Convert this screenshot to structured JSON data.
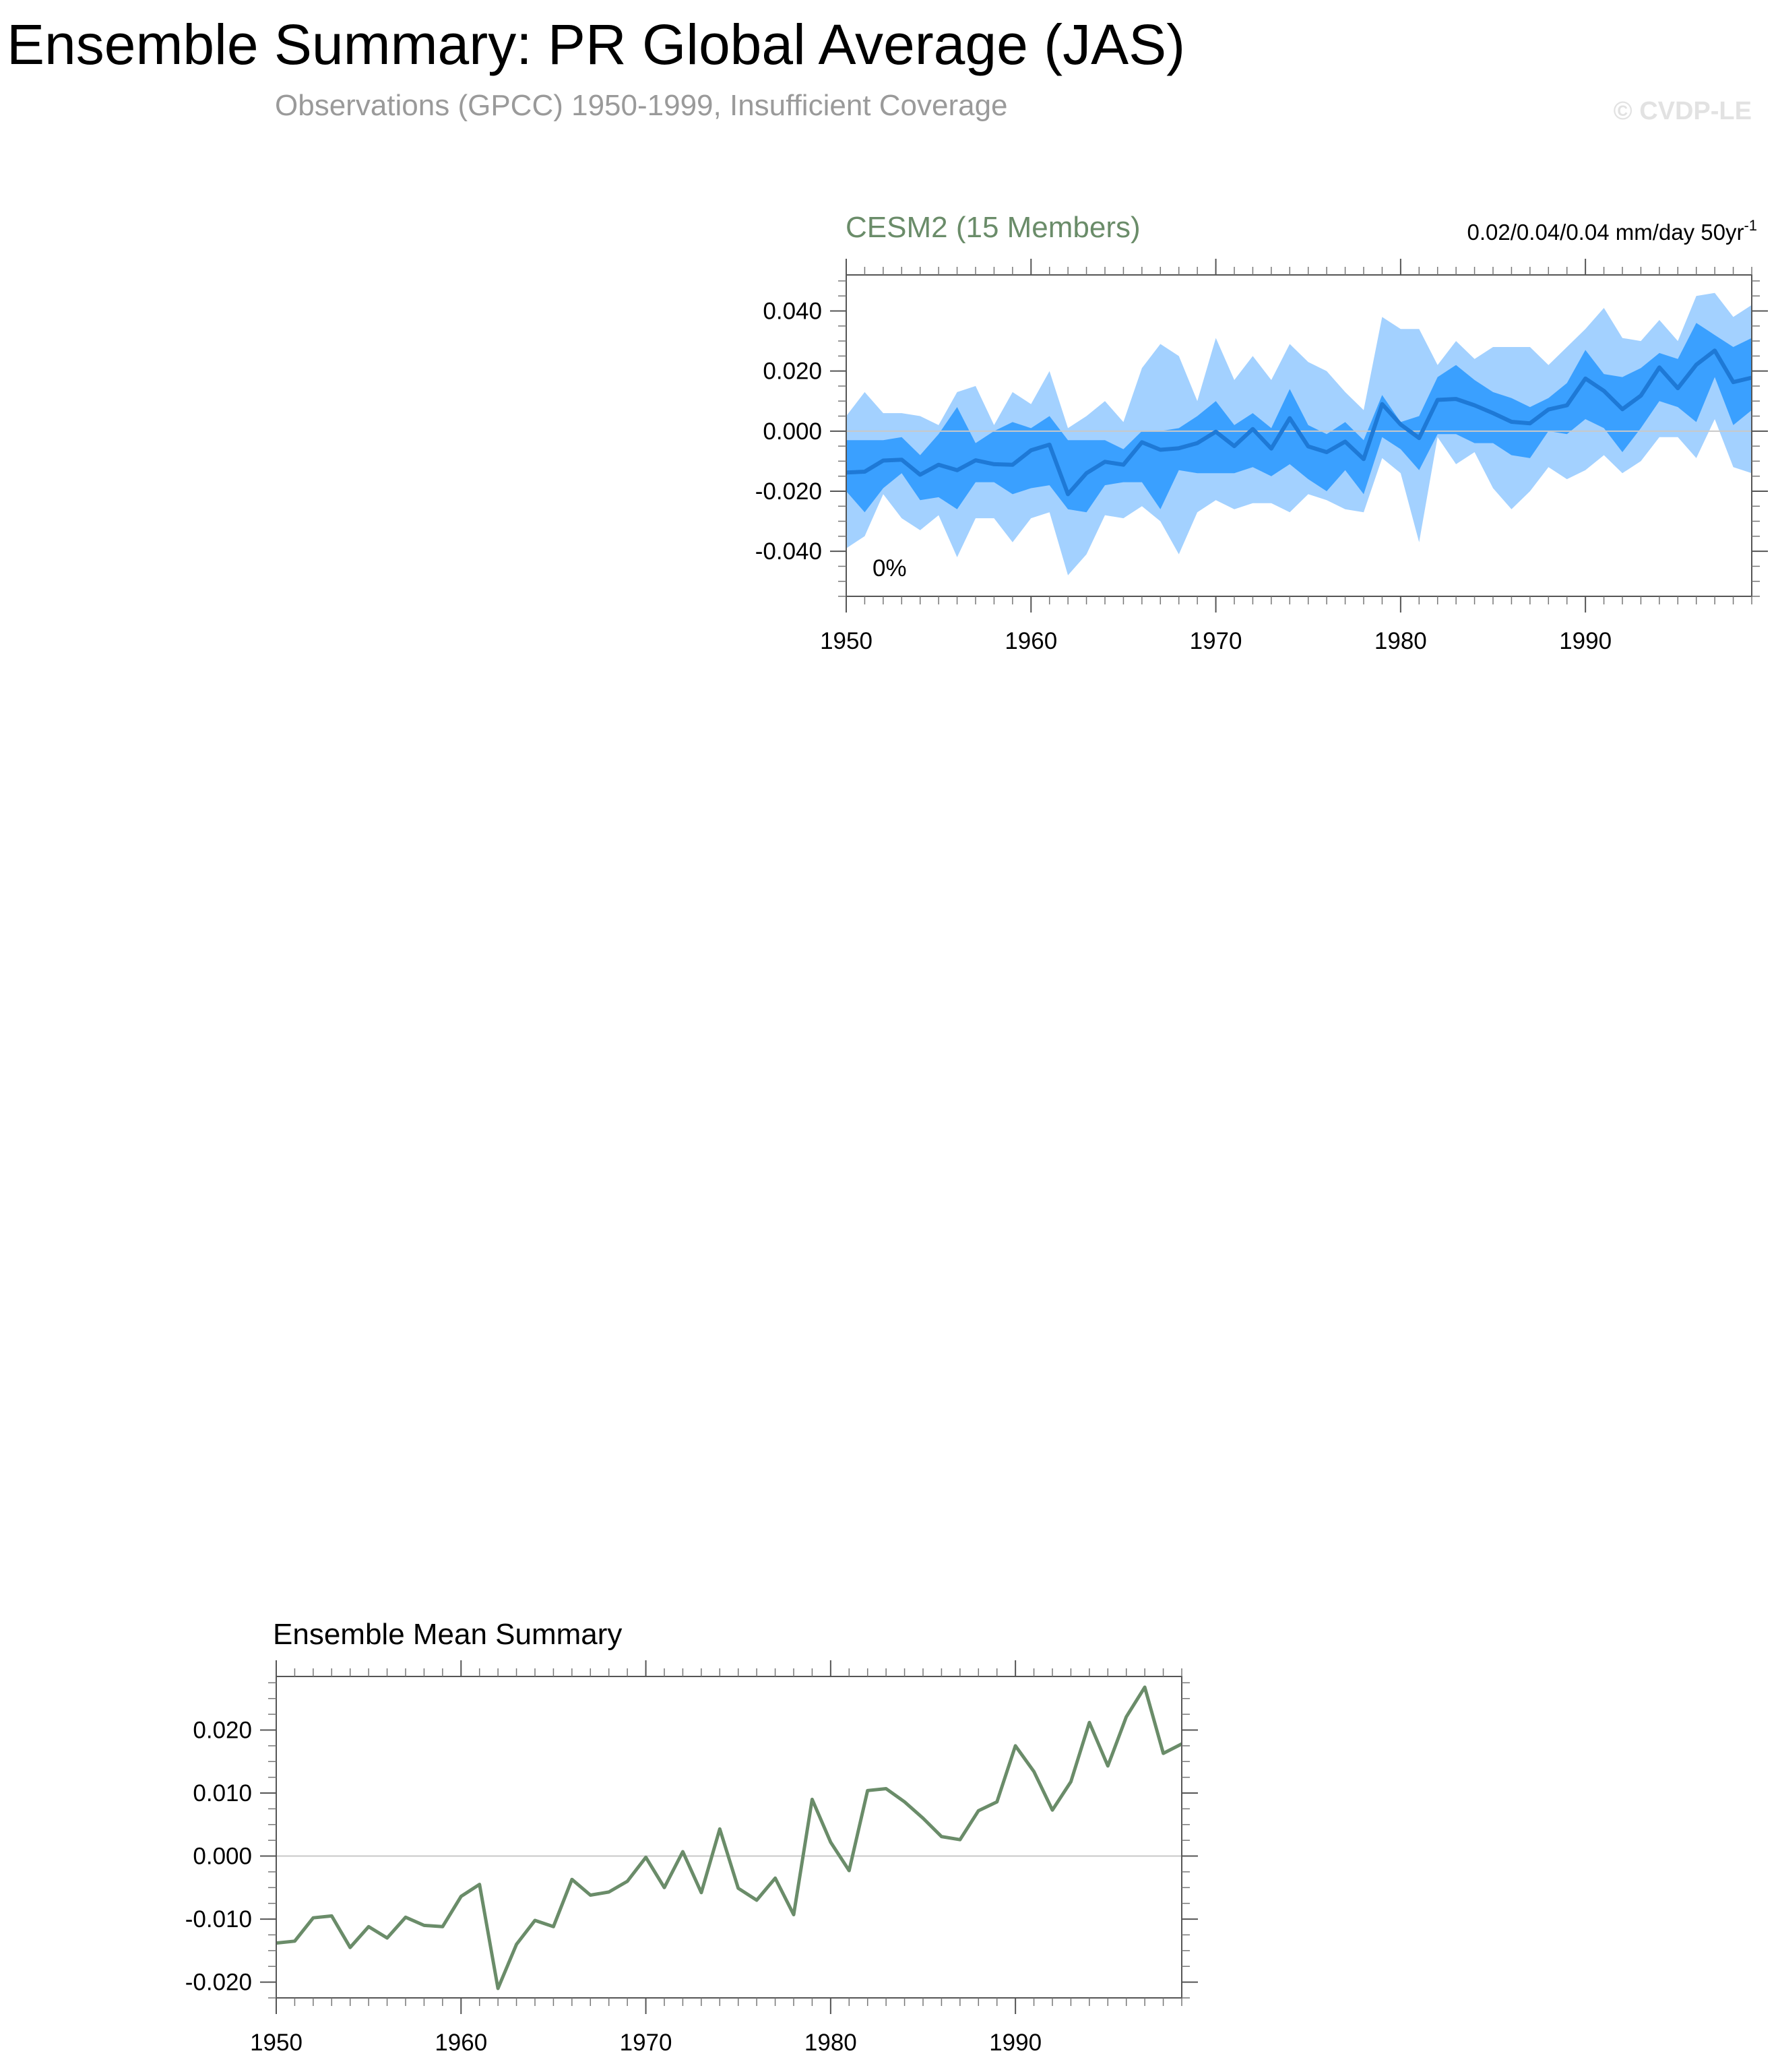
{
  "header": {
    "title": "Ensemble Summary: PR Global Average (JAS)",
    "subtitle": "Observations (GPCC) 1950-1999, Insufficient Coverage",
    "watermark": "© CVDP-LE"
  },
  "colors": {
    "outer_band": "#a3d1ff",
    "inner_band": "#3aa0ff",
    "ensemble_mean": "#1e79d6",
    "summary_line": "#6a8c69",
    "panel_title": "#6a8c69"
  },
  "chart_data": [
    {
      "type": "area",
      "title": "CESM2 (15 Members)",
      "trend_label": "0.02/0.04/0.04 mm/day 50yr",
      "trend_label_sup": "-1",
      "annotation": "0%",
      "xlim": [
        1950,
        1999
      ],
      "ylim": [
        -0.055,
        0.052
      ],
      "yticks": [
        0.04,
        0.02,
        0.0,
        -0.02,
        -0.04
      ],
      "ytick_labels": [
        "0.040",
        "0.020",
        "0.000",
        "-0.020",
        "-0.040"
      ],
      "xticks": [
        1950,
        1960,
        1970,
        1980,
        1990
      ],
      "xtick_labels": [
        "1950",
        "1960",
        "1970",
        "1980",
        "1990"
      ],
      "x": [
        1950,
        1951,
        1952,
        1953,
        1954,
        1955,
        1956,
        1957,
        1958,
        1959,
        1960,
        1961,
        1962,
        1963,
        1964,
        1965,
        1966,
        1967,
        1968,
        1969,
        1970,
        1971,
        1972,
        1973,
        1974,
        1975,
        1976,
        1977,
        1978,
        1979,
        1980,
        1981,
        1982,
        1983,
        1984,
        1985,
        1986,
        1987,
        1988,
        1989,
        1990,
        1991,
        1992,
        1993,
        1994,
        1995,
        1996,
        1997,
        1998,
        1999
      ],
      "series": [
        {
          "role": "max",
          "values": [
            0.005,
            0.013,
            0.006,
            0.006,
            0.005,
            0.002,
            0.013,
            0.015,
            0.002,
            0.013,
            0.009,
            0.02,
            0.001,
            0.005,
            0.01,
            0.003,
            0.021,
            0.029,
            0.025,
            0.01,
            0.031,
            0.017,
            0.025,
            0.017,
            0.029,
            0.023,
            0.02,
            0.013,
            0.007,
            0.038,
            0.034,
            0.034,
            0.022,
            0.03,
            0.024,
            0.028,
            0.028,
            0.028,
            0.022,
            0.028,
            0.034,
            0.041,
            0.031,
            0.03,
            0.037,
            0.03,
            0.045,
            0.046,
            0.038,
            0.042
          ]
        },
        {
          "role": "q75",
          "values": [
            -0.003,
            -0.003,
            -0.003,
            -0.002,
            -0.008,
            -0.001,
            0.008,
            -0.004,
            0.0,
            0.003,
            0.001,
            0.005,
            -0.003,
            -0.003,
            -0.003,
            -0.006,
            0.0,
            0.0,
            0.001,
            0.005,
            0.01,
            0.002,
            0.006,
            0.001,
            0.014,
            0.002,
            -0.001,
            0.003,
            -0.003,
            0.012,
            0.003,
            0.005,
            0.018,
            0.022,
            0.017,
            0.013,
            0.011,
            0.008,
            0.011,
            0.016,
            0.027,
            0.019,
            0.018,
            0.021,
            0.026,
            0.024,
            0.036,
            0.032,
            0.028,
            0.031
          ]
        },
        {
          "role": "mean",
          "values": [
            -0.0138,
            -0.0135,
            -0.0098,
            -0.0095,
            -0.0145,
            -0.0112,
            -0.013,
            -0.0097,
            -0.011,
            -0.0112,
            -0.0064,
            -0.0045,
            -0.021,
            -0.014,
            -0.0102,
            -0.0112,
            -0.0037,
            -0.0062,
            -0.0057,
            -0.004,
            -0.0002,
            -0.005,
            0.0007,
            -0.0058,
            0.0043,
            -0.0051,
            -0.007,
            -0.0035,
            -0.0093,
            0.009,
            0.0022,
            -0.0023,
            0.0104,
            0.0107,
            0.0086,
            0.006,
            0.0031,
            0.0026,
            0.0072,
            0.0086,
            0.0175,
            0.0134,
            0.0073,
            0.0118,
            0.0212,
            0.0143,
            0.0221,
            0.0268,
            0.0163,
            0.0178
          ]
        },
        {
          "role": "q25",
          "values": [
            -0.02,
            -0.027,
            -0.019,
            -0.014,
            -0.023,
            -0.022,
            -0.026,
            -0.017,
            -0.017,
            -0.021,
            -0.019,
            -0.018,
            -0.026,
            -0.027,
            -0.018,
            -0.017,
            -0.017,
            -0.026,
            -0.013,
            -0.014,
            -0.014,
            -0.014,
            -0.012,
            -0.015,
            -0.011,
            -0.016,
            -0.02,
            -0.013,
            -0.021,
            -0.002,
            -0.006,
            -0.013,
            -0.001,
            -0.001,
            -0.004,
            -0.004,
            -0.008,
            -0.009,
            0.0,
            -0.001,
            0.004,
            0.001,
            -0.007,
            0.001,
            0.01,
            0.008,
            0.003,
            0.018,
            0.002,
            0.007
          ]
        },
        {
          "role": "min",
          "values": [
            -0.039,
            -0.035,
            -0.021,
            -0.029,
            -0.033,
            -0.028,
            -0.042,
            -0.029,
            -0.029,
            -0.037,
            -0.029,
            -0.027,
            -0.048,
            -0.041,
            -0.028,
            -0.029,
            -0.025,
            -0.03,
            -0.041,
            -0.027,
            -0.023,
            -0.026,
            -0.024,
            -0.024,
            -0.027,
            -0.021,
            -0.023,
            -0.026,
            -0.027,
            -0.009,
            -0.014,
            -0.037,
            -0.002,
            -0.011,
            -0.007,
            -0.019,
            -0.026,
            -0.02,
            -0.012,
            -0.016,
            -0.013,
            -0.008,
            -0.014,
            -0.01,
            -0.002,
            -0.002,
            -0.009,
            0.004,
            -0.012,
            -0.014
          ]
        }
      ]
    },
    {
      "type": "line",
      "title": "Ensemble Mean Summary",
      "xlim": [
        1950,
        1999
      ],
      "ylim": [
        -0.0225,
        0.0285
      ],
      "yticks": [
        0.02,
        0.01,
        0.0,
        -0.01,
        -0.02
      ],
      "ytick_labels": [
        "0.020",
        "0.010",
        "0.000",
        "-0.010",
        "-0.020"
      ],
      "xticks": [
        1950,
        1960,
        1970,
        1980,
        1990
      ],
      "xtick_labels": [
        "1950",
        "1960",
        "1970",
        "1980",
        "1990"
      ],
      "x": [
        1950,
        1951,
        1952,
        1953,
        1954,
        1955,
        1956,
        1957,
        1958,
        1959,
        1960,
        1961,
        1962,
        1963,
        1964,
        1965,
        1966,
        1967,
        1968,
        1969,
        1970,
        1971,
        1972,
        1973,
        1974,
        1975,
        1976,
        1977,
        1978,
        1979,
        1980,
        1981,
        1982,
        1983,
        1984,
        1985,
        1986,
        1987,
        1988,
        1989,
        1990,
        1991,
        1992,
        1993,
        1994,
        1995,
        1996,
        1997,
        1998,
        1999
      ],
      "series": [
        {
          "values": [
            -0.0138,
            -0.0135,
            -0.0098,
            -0.0095,
            -0.0145,
            -0.0112,
            -0.013,
            -0.0097,
            -0.011,
            -0.0112,
            -0.0064,
            -0.0045,
            -0.021,
            -0.014,
            -0.0102,
            -0.0112,
            -0.0037,
            -0.0062,
            -0.0057,
            -0.004,
            -0.0002,
            -0.005,
            0.0007,
            -0.0058,
            0.0043,
            -0.0051,
            -0.007,
            -0.0035,
            -0.0093,
            0.009,
            0.0022,
            -0.0023,
            0.0104,
            0.0107,
            0.0086,
            0.006,
            0.0031,
            0.0026,
            0.0072,
            0.0086,
            0.0175,
            0.0134,
            0.0073,
            0.0118,
            0.0212,
            0.0143,
            0.0221,
            0.0268,
            0.0163,
            0.0178
          ]
        }
      ]
    }
  ]
}
